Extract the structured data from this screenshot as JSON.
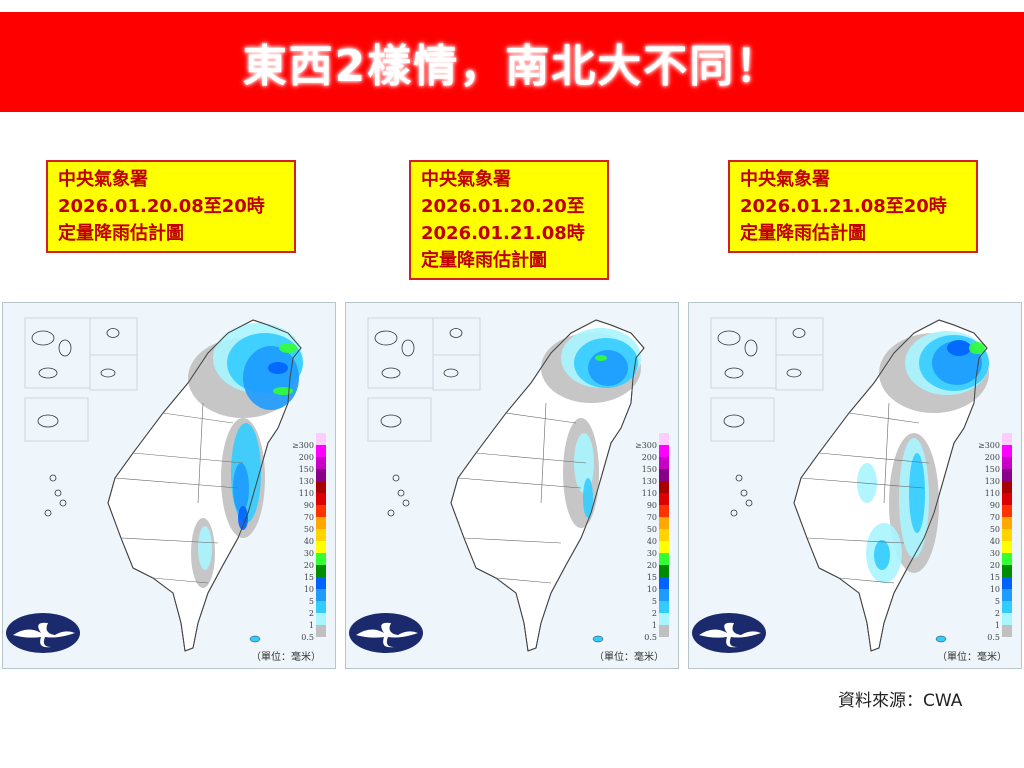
{
  "title": "東西2樣情，南北大不同！",
  "panels": [
    {
      "label": [
        "中央氣象署",
        "2026.01.20.08至20時",
        "定量降雨估計圖"
      ]
    },
    {
      "label": [
        "中央氣象署",
        "2026.01.20.20至",
        "2026.01.21.08時",
        "定量降雨估計圖"
      ]
    },
    {
      "label": [
        "中央氣象署",
        "2026.01.21.08至20時",
        "定量降雨估計圖"
      ]
    }
  ],
  "legend": {
    "levels": [
      "0.5",
      "1",
      "2",
      "5",
      "10",
      "15",
      "20",
      "30",
      "40",
      "50",
      "70",
      "90",
      "110",
      "130",
      "150",
      "200",
      "≥300"
    ],
    "colors": [
      "#c0c0c0",
      "#a8f4ff",
      "#33ccff",
      "#1e9bff",
      "#0063ff",
      "#008c00",
      "#33ff33",
      "#ffff00",
      "#ffd400",
      "#ffa800",
      "#ff3300",
      "#dd0000",
      "#aa0000",
      "#880088",
      "#c800c8",
      "#ff00ff",
      "#ffccff"
    ],
    "unit": "（單位：毫米）"
  },
  "logo": "cwa-logo",
  "source": "資料來源：CWA"
}
